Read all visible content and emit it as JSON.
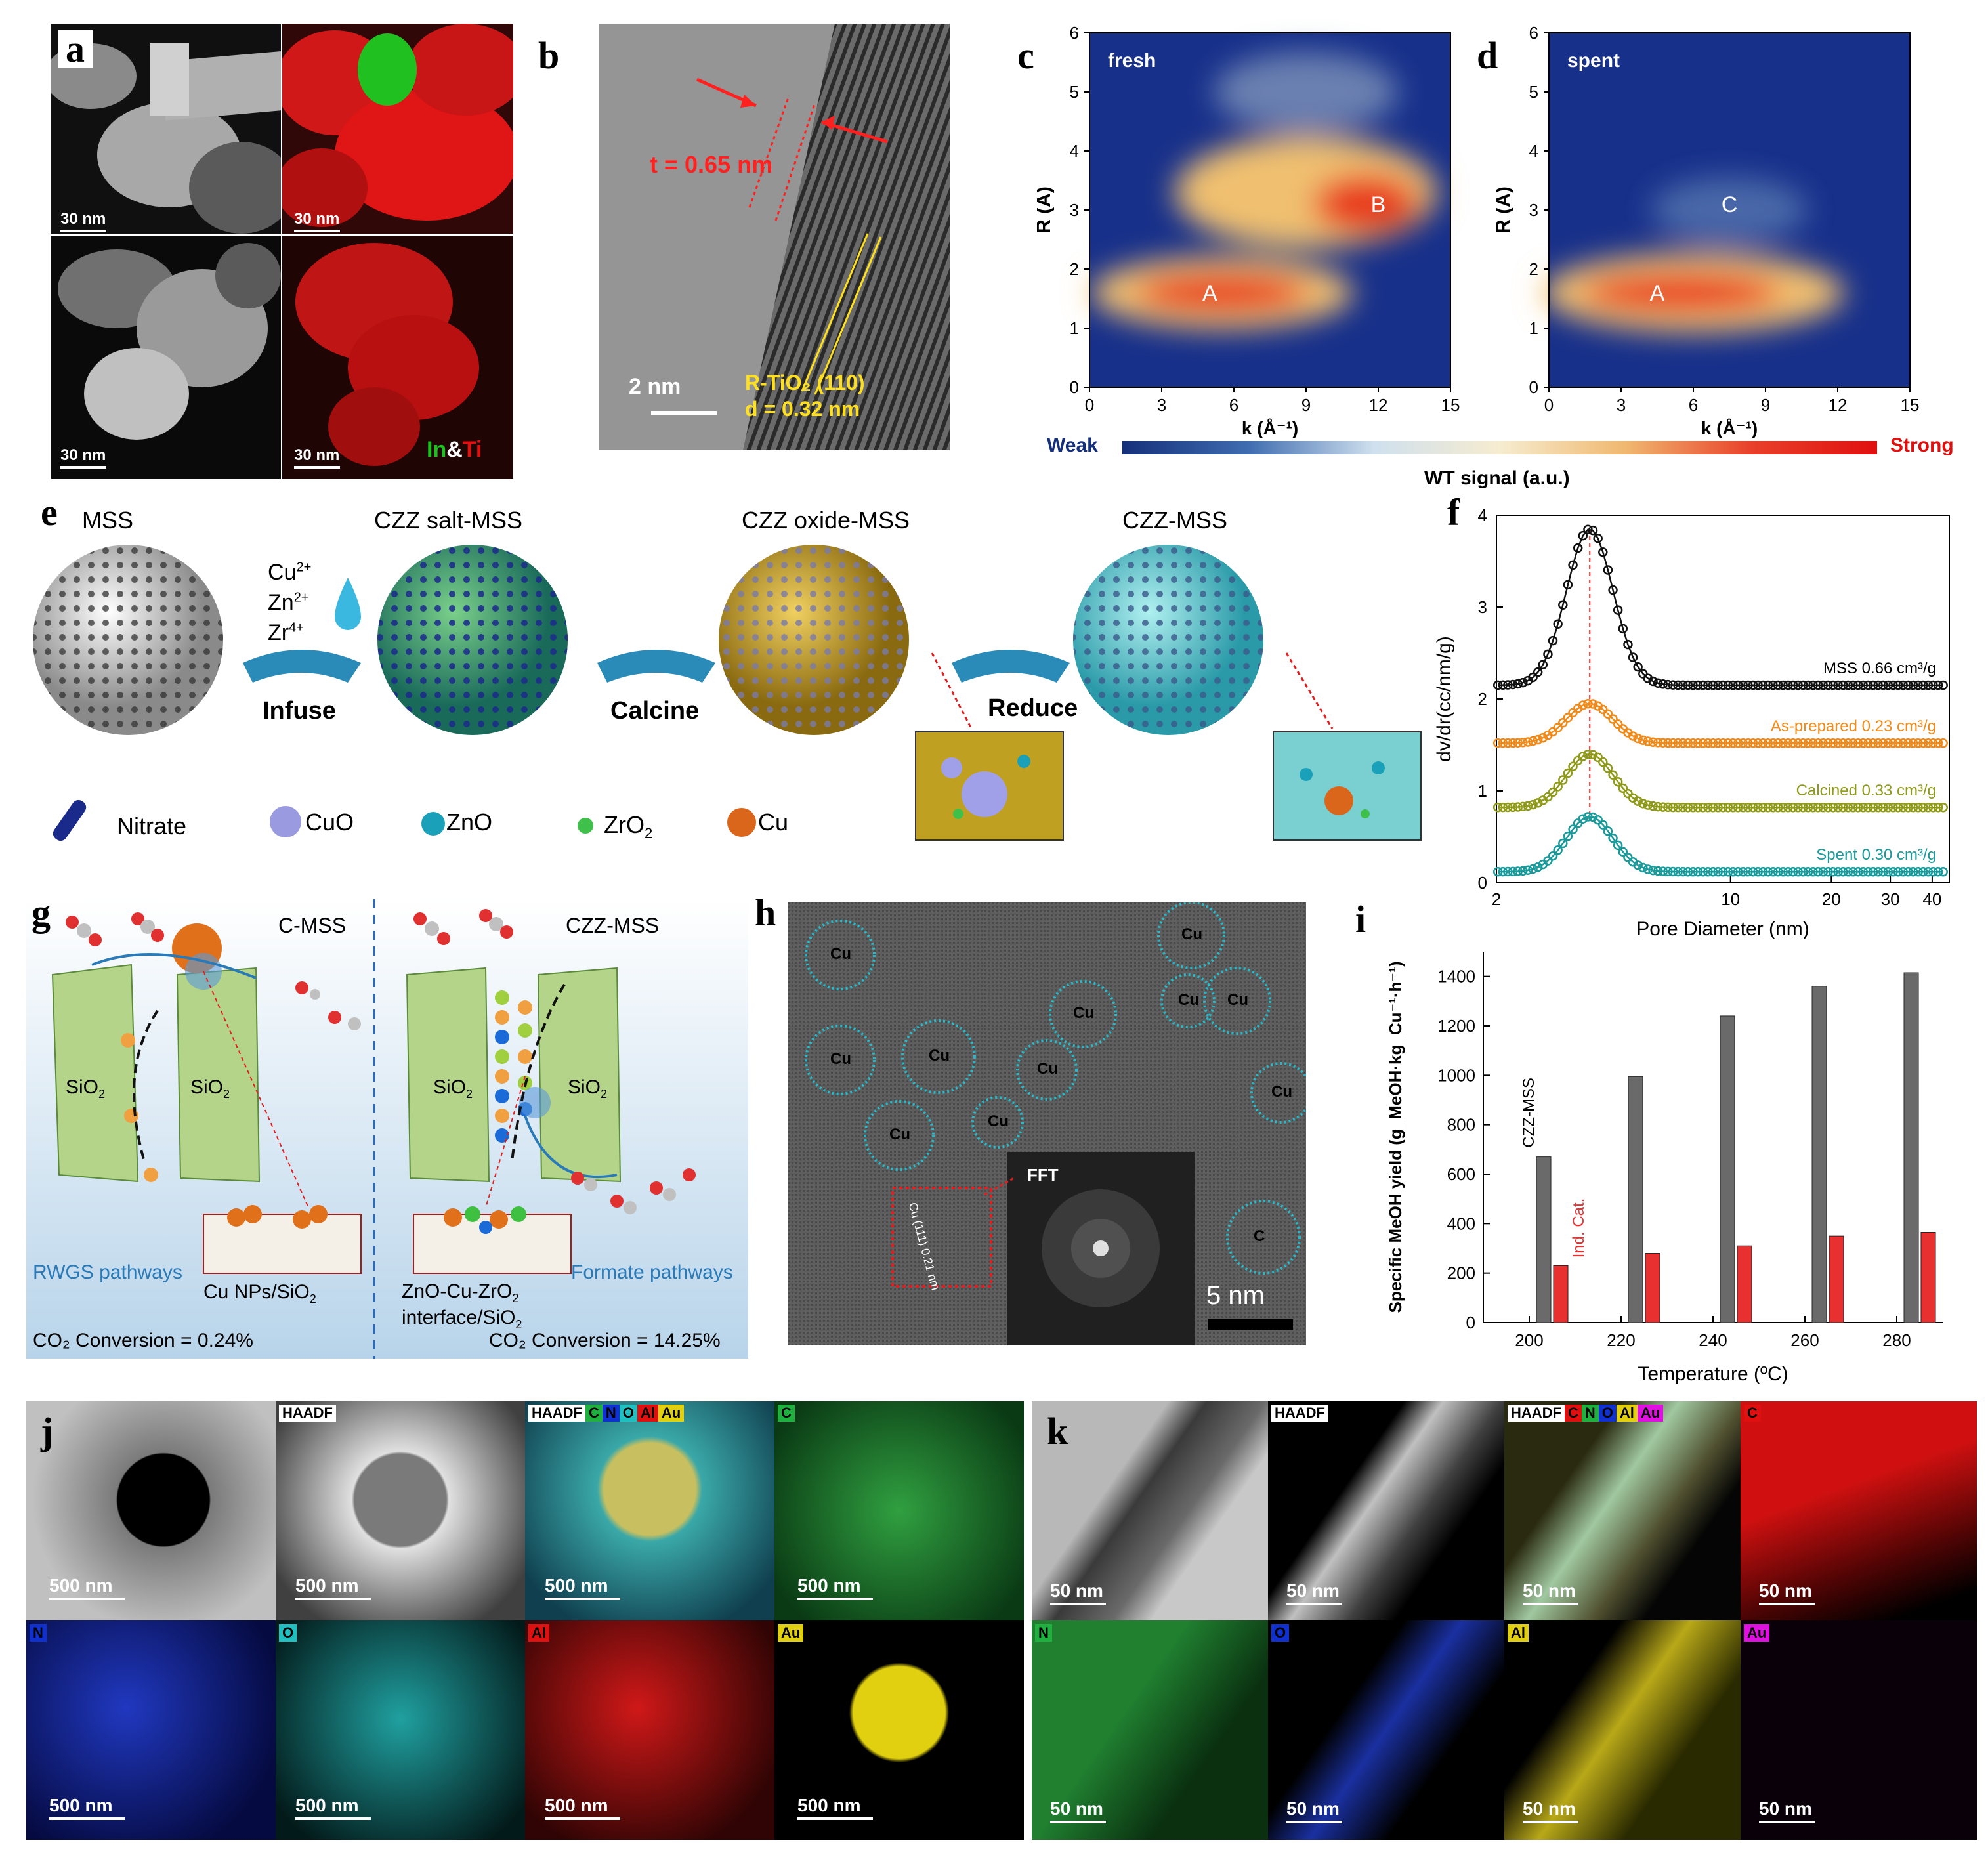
{
  "panels": {
    "a": {
      "label": "a",
      "scale": "30 nm",
      "legend_in": "In",
      "legend_amp": "&",
      "legend_ti": "Ti",
      "color_in": "#1fbf1f",
      "color_ti": "#e01010"
    },
    "b": {
      "label": "b",
      "scale": "2 nm",
      "thickness": "t = 0.65 nm",
      "plane": "R-TiO₂ (110)",
      "dspacing": "d = 0.32 nm"
    },
    "c": {
      "label": "c",
      "title": "fresh",
      "peakA": "A",
      "peakB": "B"
    },
    "d": {
      "label": "d",
      "title": "spent",
      "peakA": "A",
      "peakC": "C"
    },
    "colorbar": {
      "weak": "Weak",
      "strong": "Strong",
      "title": "WT signal (a.u.)"
    },
    "e": {
      "label": "e",
      "stages": [
        "MSS",
        "CZZ salt-MSS",
        "CZZ oxide-MSS",
        "CZZ-MSS"
      ],
      "ions": [
        "Cu",
        "Zn",
        "Zr"
      ],
      "ion_charges": [
        "2+",
        "2+",
        "4+"
      ],
      "steps": [
        "Infuse",
        "Calcine",
        "Reduce"
      ],
      "legend": [
        {
          "name": "Nitrate",
          "color": "#1a2a8a"
        },
        {
          "name": "CuO",
          "color": "#9a9ae0"
        },
        {
          "name": "ZnO",
          "color": "#1aa0b8"
        },
        {
          "name": "ZrO",
          "sub": "2",
          "color": "#3fc04a"
        },
        {
          "name": "Cu",
          "color": "#d9661a"
        }
      ]
    },
    "g": {
      "label": "g",
      "left_title": "C-MSS",
      "right_title": "CZZ-MSS",
      "sio2": "SiO",
      "sio2_sub": "2",
      "left_pathway": "RWGS pathways",
      "left_cat": "Cu NPs/SiO",
      "right_pathway": "Formate pathways",
      "right_cat1": "ZnO-Cu-ZrO",
      "right_cat2": "interface/SiO",
      "left_conv": "CO₂ Conversion = 0.24%",
      "right_conv": "CO₂ Conversion = 14.25%"
    },
    "h": {
      "label": "h",
      "particle": "Cu",
      "particle_partial": "C",
      "fft": "FFT",
      "lattice": "Cu (111)",
      "lattice_d": "0.21 nm",
      "scale": "5 nm"
    },
    "j": {
      "label": "j",
      "scale": "500 nm",
      "haadf": "HAADF",
      "elements": [
        "C",
        "N",
        "O",
        "Al",
        "Au"
      ],
      "colors": {
        "C": "#20b040",
        "N": "#1030d0",
        "O": "#20c0c0",
        "Al": "#e01010",
        "Au": "#e0d010"
      }
    },
    "k": {
      "label": "k",
      "scale": "50 nm",
      "haadf": "HAADF",
      "elements": [
        "C",
        "N",
        "O",
        "Al",
        "Au"
      ],
      "colors": {
        "C": "#e01010",
        "N": "#20b040",
        "O": "#1030d0",
        "Al": "#e0d010",
        "Au": "#e010e0"
      }
    }
  },
  "chart_data": [
    {
      "id": "c",
      "type": "heatmap",
      "title": "fresh",
      "xlabel": "k (Å⁻¹)",
      "ylabel": "R (Å)",
      "xlim": [
        0,
        15
      ],
      "ylim": [
        0,
        6
      ],
      "xticks": [
        0,
        3,
        6,
        9,
        12,
        15
      ],
      "yticks": [
        0,
        1,
        2,
        3,
        4,
        5,
        6
      ],
      "features": [
        {
          "name": "A",
          "k": 5,
          "R": 1.6
        },
        {
          "name": "B",
          "k": 12,
          "R": 3.1
        }
      ]
    },
    {
      "id": "d",
      "type": "heatmap",
      "title": "spent",
      "xlabel": "k (Å⁻¹)",
      "ylabel": "R (Å)",
      "xlim": [
        0,
        15
      ],
      "ylim": [
        0,
        6
      ],
      "xticks": [
        0,
        3,
        6,
        9,
        12,
        15
      ],
      "yticks": [
        0,
        1,
        2,
        3,
        4,
        5,
        6
      ],
      "features": [
        {
          "name": "A",
          "k": 4.5,
          "R": 1.6
        },
        {
          "name": "C",
          "k": 7.5,
          "R": 3.1
        }
      ]
    },
    {
      "id": "f",
      "type": "line",
      "xlabel": "Pore Diameter (nm)",
      "ylabel": "dv/dr(cc/nm/g)",
      "xscale": "log",
      "xlim": [
        2,
        45
      ],
      "ylim": [
        0,
        4
      ],
      "xticks": [
        2,
        10,
        20,
        30,
        40
      ],
      "yticks": [
        0,
        1,
        2,
        3,
        4
      ],
      "series": [
        {
          "name": "MSS 0.66 cm³/g",
          "color": "#111111",
          "baseline": 2.15,
          "peak": 3.85
        },
        {
          "name": "As-prepared  0.23 cm³/g",
          "color": "#f08a1a",
          "baseline": 1.52,
          "peak": 1.95
        },
        {
          "name": "Calcined  0.33 cm³/g",
          "color": "#8f9a1a",
          "baseline": 0.82,
          "peak": 1.4
        },
        {
          "name": "Spent  0.30 cm³/g",
          "color": "#1a9a9a",
          "baseline": 0.12,
          "peak": 0.72
        }
      ],
      "peak_position": 3.8
    },
    {
      "id": "i",
      "type": "bar",
      "xlabel": "Temperature (ºC)",
      "ylabel": "Specific MeOH yield (g_MeOH·kg_Cu⁻¹·h⁻¹)",
      "xlim": [
        190,
        290
      ],
      "ylim": [
        0,
        1500
      ],
      "xticks": [
        200,
        220,
        240,
        260,
        280
      ],
      "yticks": [
        0,
        200,
        400,
        600,
        800,
        1000,
        1200,
        1400
      ],
      "categories": [
        205,
        225,
        245,
        265,
        285
      ],
      "series": [
        {
          "name": "CZZ-MSS",
          "color": "#6a6a6a",
          "values": [
            670,
            995,
            1240,
            1360,
            1415
          ]
        },
        {
          "name": "Ind. Cat.",
          "color": "#e83030",
          "values": [
            230,
            280,
            310,
            350,
            365
          ]
        }
      ]
    }
  ]
}
